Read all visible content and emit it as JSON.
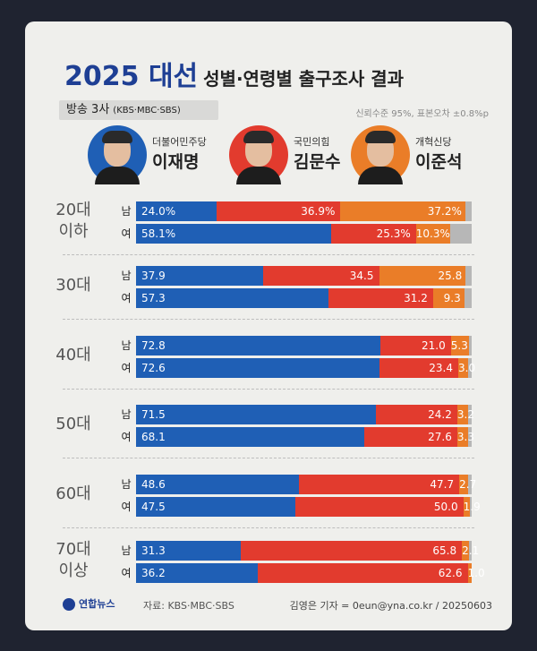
{
  "header": {
    "title_year": "2025 대선",
    "title_rest": "성별·연령별 출구조사 결과",
    "broadcast_label": "방송 3사",
    "broadcast_detail": "(KBS·MBC·SBS)",
    "note": "신뢰수준 95%, 표본오차 ±0.8%p"
  },
  "candidates": [
    {
      "party": "더불어민주당",
      "name": "이재명",
      "color": "#1f5fb5"
    },
    {
      "party": "국민의힘",
      "name": "김문수",
      "color": "#e23b2e"
    },
    {
      "party": "개혁신당",
      "name": "이준석",
      "color": "#ea7d28"
    }
  ],
  "other_color": "#b7b7b7",
  "footer": {
    "logo": "연합뉴스",
    "source": "자료: KBS·MBC·SBS",
    "credit": "김영은 기자 = 0eun@yna.co.kr / 20250603"
  },
  "chart_data": {
    "type": "bar",
    "stacked": true,
    "orientation": "horizontal",
    "groups": [
      {
        "age_line1": "20대",
        "age_line2": "이하",
        "rows": [
          {
            "gender": "남",
            "values": [
              24.0,
              36.9,
              37.2
            ],
            "labels": [
              "24.0%",
              "36.9%",
              "37.2%"
            ]
          },
          {
            "gender": "여",
            "values": [
              58.1,
              25.3,
              10.3
            ],
            "labels": [
              "58.1%",
              "25.3%",
              "10.3%"
            ]
          }
        ]
      },
      {
        "age_line1": "30대",
        "age_line2": "",
        "rows": [
          {
            "gender": "남",
            "values": [
              37.9,
              34.5,
              25.8
            ],
            "labels": [
              "37.9",
              "34.5",
              "25.8"
            ]
          },
          {
            "gender": "여",
            "values": [
              57.3,
              31.2,
              9.3
            ],
            "labels": [
              "57.3",
              "31.2",
              "9.3"
            ]
          }
        ]
      },
      {
        "age_line1": "40대",
        "age_line2": "",
        "rows": [
          {
            "gender": "남",
            "values": [
              72.8,
              21.0,
              5.3
            ],
            "labels": [
              "72.8",
              "21.0",
              "5.3"
            ]
          },
          {
            "gender": "여",
            "values": [
              72.6,
              23.4,
              3.0
            ],
            "labels": [
              "72.6",
              "23.4",
              "3.0"
            ]
          }
        ]
      },
      {
        "age_line1": "50대",
        "age_line2": "",
        "rows": [
          {
            "gender": "남",
            "values": [
              71.5,
              24.2,
              3.2
            ],
            "labels": [
              "71.5",
              "24.2",
              "3.2"
            ]
          },
          {
            "gender": "여",
            "values": [
              68.1,
              27.6,
              3.3
            ],
            "labels": [
              "68.1",
              "27.6",
              "3.3"
            ]
          }
        ]
      },
      {
        "age_line1": "60대",
        "age_line2": "",
        "rows": [
          {
            "gender": "남",
            "values": [
              48.6,
              47.7,
              2.7
            ],
            "labels": [
              "48.6",
              "47.7",
              "2.7"
            ]
          },
          {
            "gender": "여",
            "values": [
              47.5,
              50.0,
              1.9
            ],
            "labels": [
              "47.5",
              "50.0",
              "1.9"
            ]
          }
        ]
      },
      {
        "age_line1": "70대",
        "age_line2": "이상",
        "rows": [
          {
            "gender": "남",
            "values": [
              31.3,
              65.8,
              2.1
            ],
            "labels": [
              "31.3",
              "65.8",
              "2.1"
            ]
          },
          {
            "gender": "여",
            "values": [
              36.2,
              62.6,
              1.0
            ],
            "labels": [
              "36.2",
              "62.6",
              "1.0"
            ]
          }
        ]
      }
    ],
    "xlim": [
      0,
      100
    ]
  }
}
